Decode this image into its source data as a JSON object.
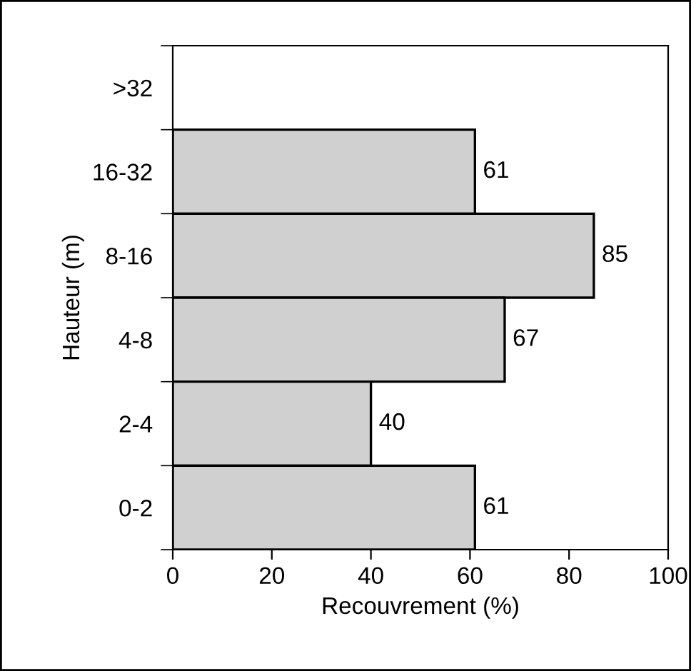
{
  "chart_data": {
    "type": "bar",
    "orientation": "horizontal",
    "xlabel": "Recouvrement (%)",
    "ylabel": "Hauteur (m)",
    "categories": [
      ">32",
      "16-32",
      "8-16",
      "4-8",
      "2-4",
      "0-2"
    ],
    "values": [
      null,
      61,
      85,
      67,
      40,
      61
    ],
    "color": "#d0d0d0",
    "xlim": [
      0,
      100
    ],
    "xticks": [
      0,
      20,
      40,
      60,
      80,
      100
    ],
    "data_labels": true,
    "grid": false,
    "legend": false
  }
}
